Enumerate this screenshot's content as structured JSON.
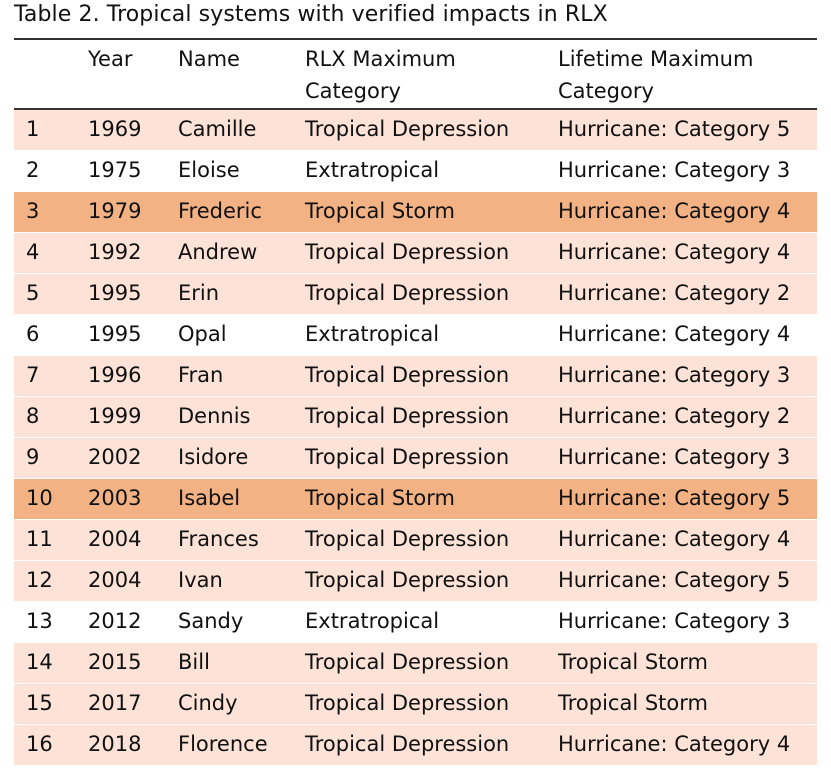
{
  "caption": "Table 2.  Tropical systems with verified impacts in RLX",
  "columns": {
    "year": "Year",
    "name": "Name",
    "rlx": "RLX Maximum Category",
    "lifetime": "Lifetime Maximum Category"
  },
  "colors": {
    "light_row": "#fde3d7",
    "white_row": "#ffffff",
    "highlight_row": "#f2b283"
  },
  "rows": [
    {
      "idx": "1",
      "year": "1969",
      "name": "Camille",
      "rlx": "Tropical Depression",
      "lifetime": "Hurricane: Category 5",
      "shade": "light"
    },
    {
      "idx": "2",
      "year": "1975",
      "name": "Eloise",
      "rlx": "Extratropical",
      "lifetime": "Hurricane: Category 3",
      "shade": "white"
    },
    {
      "idx": "3",
      "year": "1979",
      "name": "Frederic",
      "rlx": "Tropical Storm",
      "lifetime": "Hurricane: Category 4",
      "shade": "dark"
    },
    {
      "idx": "4",
      "year": "1992",
      "name": "Andrew",
      "rlx": "Tropical Depression",
      "lifetime": "Hurricane: Category 4",
      "shade": "light"
    },
    {
      "idx": "5",
      "year": "1995",
      "name": "Erin",
      "rlx": "Tropical Depression",
      "lifetime": "Hurricane: Category 2",
      "shade": "light"
    },
    {
      "idx": "6",
      "year": "1995",
      "name": "Opal",
      "rlx": "Extratropical",
      "lifetime": "Hurricane: Category 4",
      "shade": "white"
    },
    {
      "idx": "7",
      "year": "1996",
      "name": "Fran",
      "rlx": "Tropical Depression",
      "lifetime": "Hurricane: Category 3",
      "shade": "light"
    },
    {
      "idx": "8",
      "year": "1999",
      "name": "Dennis",
      "rlx": "Tropical Depression",
      "lifetime": "Hurricane: Category 2",
      "shade": "light"
    },
    {
      "idx": "9",
      "year": "2002",
      "name": "Isidore",
      "rlx": "Tropical Depression",
      "lifetime": "Hurricane: Category 3",
      "shade": "light"
    },
    {
      "idx": "10",
      "year": "2003",
      "name": "Isabel",
      "rlx": "Tropical Storm",
      "lifetime": "Hurricane: Category 5",
      "shade": "dark"
    },
    {
      "idx": "11",
      "year": "2004",
      "name": "Frances",
      "rlx": "Tropical Depression",
      "lifetime": "Hurricane: Category 4",
      "shade": "light"
    },
    {
      "idx": "12",
      "year": "2004",
      "name": "Ivan",
      "rlx": "Tropical Depression",
      "lifetime": "Hurricane: Category 5",
      "shade": "light"
    },
    {
      "idx": "13",
      "year": "2012",
      "name": "Sandy",
      "rlx": "Extratropical",
      "lifetime": "Hurricane: Category 3",
      "shade": "white"
    },
    {
      "idx": "14",
      "year": "2015",
      "name": "Bill",
      "rlx": "Tropical Depression",
      "lifetime": "Tropical Storm",
      "shade": "light"
    },
    {
      "idx": "15",
      "year": "2017",
      "name": "Cindy",
      "rlx": "Tropical Depression",
      "lifetime": "Tropical Storm",
      "shade": "light"
    },
    {
      "idx": "16",
      "year": "2018",
      "name": "Florence",
      "rlx": "Tropical Depression",
      "lifetime": "Hurricane: Category 4",
      "shade": "light"
    }
  ]
}
